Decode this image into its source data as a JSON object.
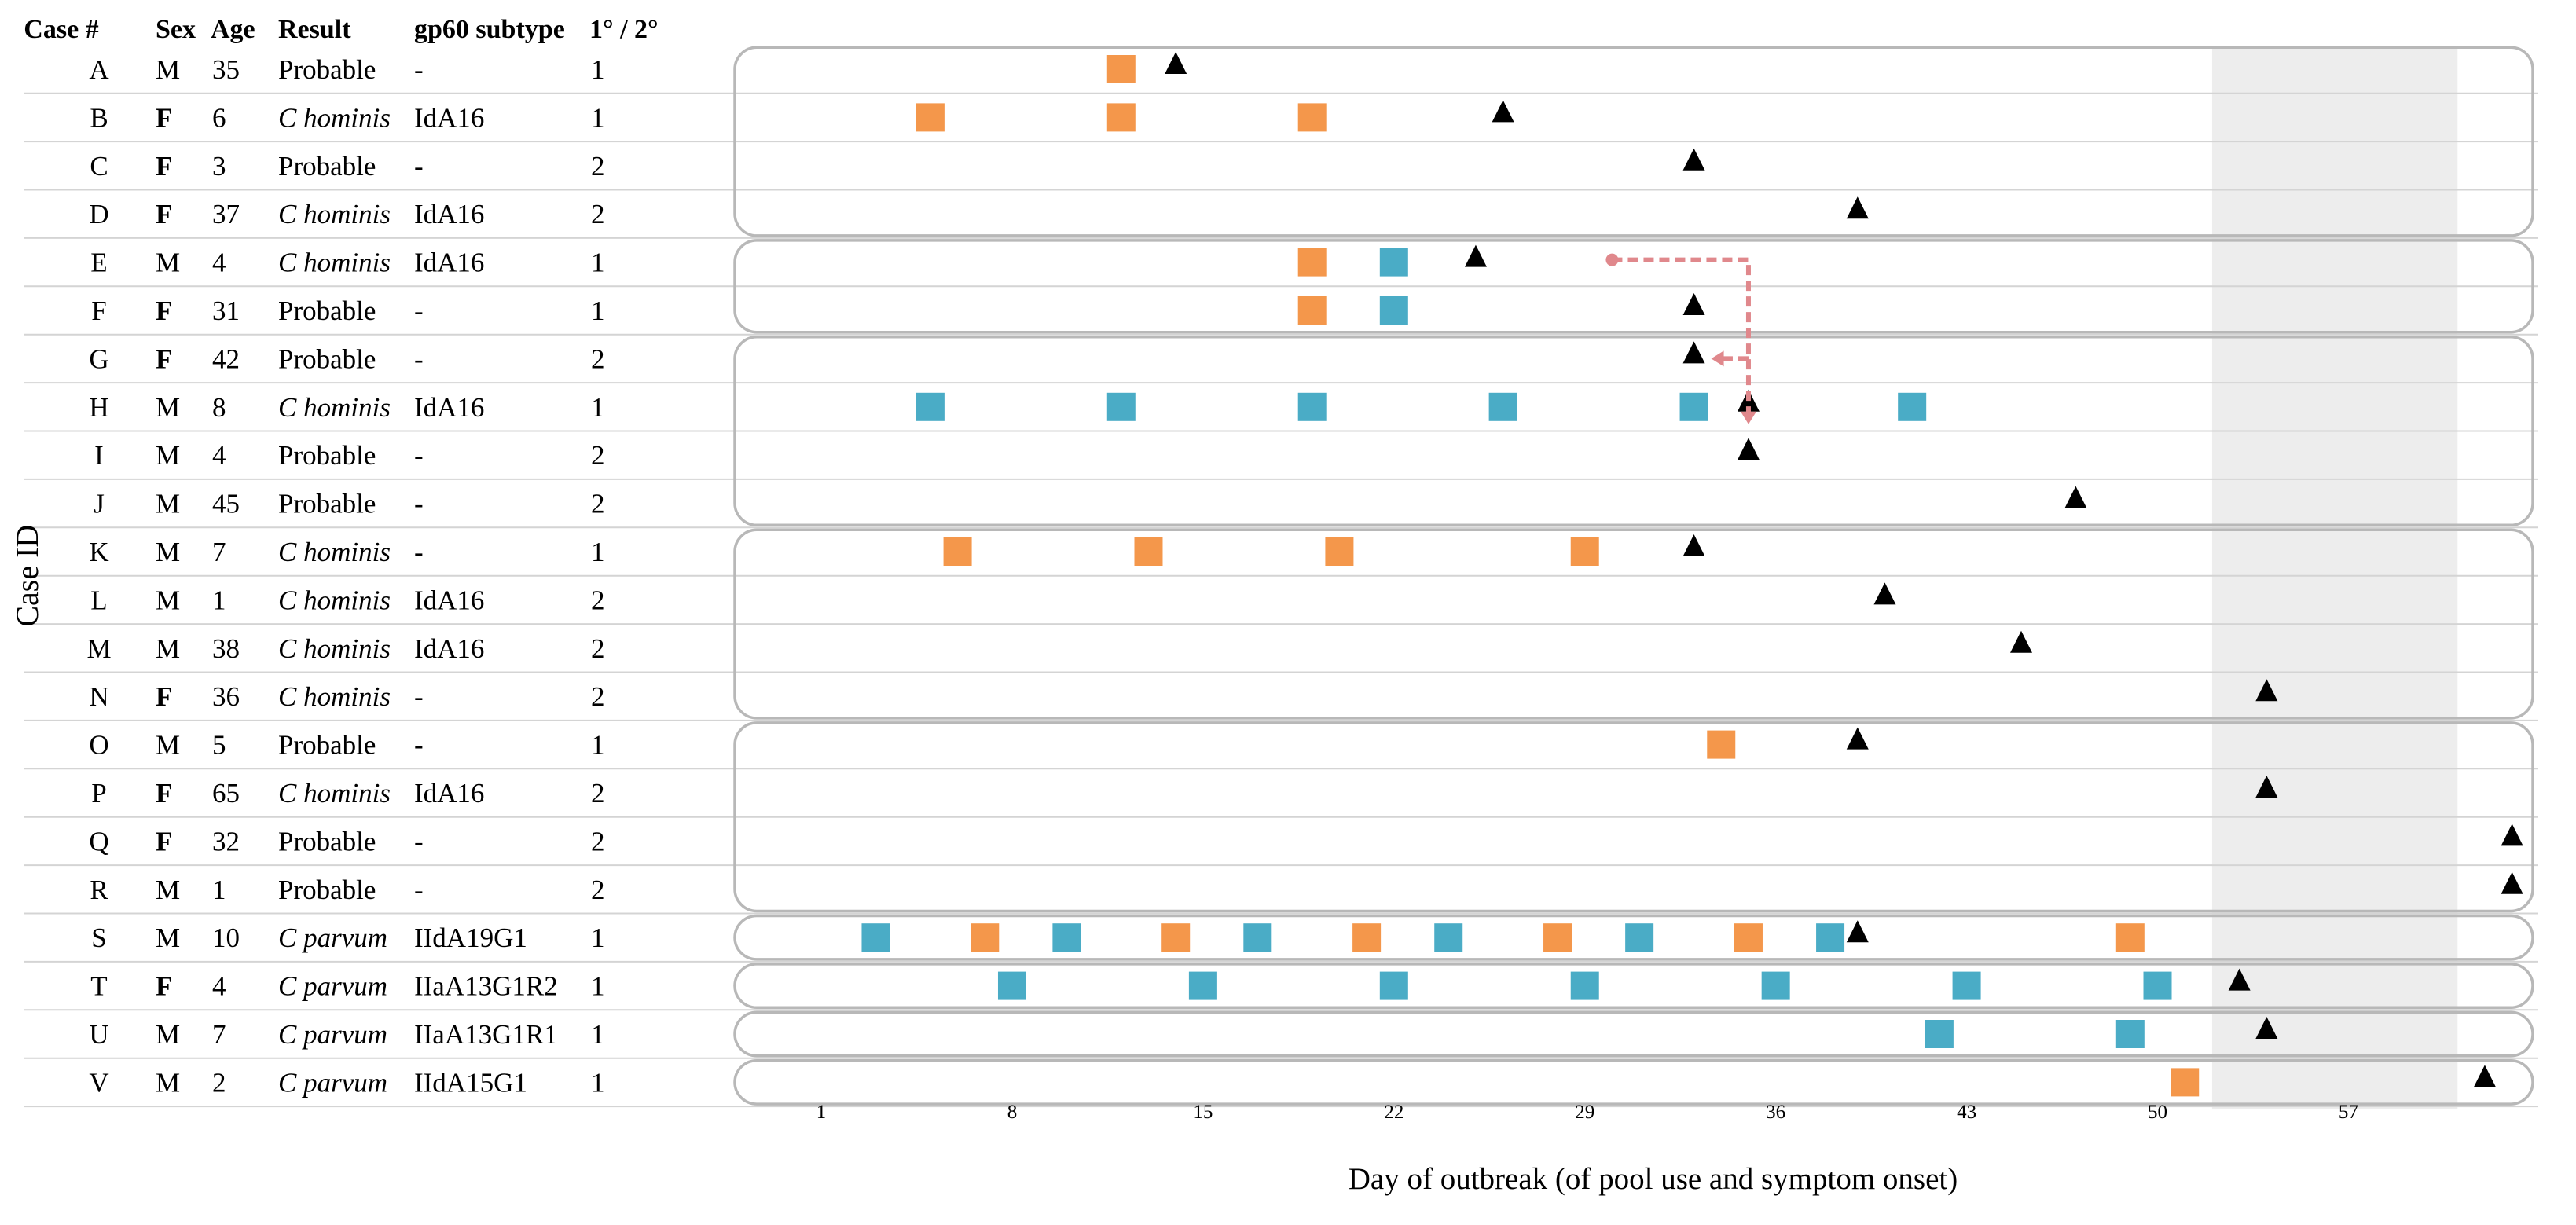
{
  "chart_data": {
    "type": "timeline",
    "xlabel": "Day of outbreak (of pool use and symptom onset)",
    "ylabel": "Case ID",
    "x_ticks": [
      "1",
      "8",
      "15",
      "22",
      "29",
      "36",
      "43",
      "50",
      "57"
    ],
    "xlim": [
      -0.5,
      63.5
    ],
    "shaded_range": [
      52,
      61
    ],
    "columns": [
      "Case #",
      "Sex",
      "Age",
      "Result",
      "gp60 subtype",
      "1° / 2°"
    ],
    "cases": [
      {
        "id": "A",
        "sex": "M",
        "age": "35",
        "result": "Probable",
        "species": "",
        "subtype": "-",
        "class": "1",
        "group": 0,
        "orange": [
          12
        ],
        "blue": [],
        "onset": 14
      },
      {
        "id": "B",
        "sex": "F",
        "age": "6",
        "result": "",
        "species": "C hominis",
        "subtype": "IdA16",
        "class": "1",
        "group": 0,
        "orange": [
          5,
          12,
          19
        ],
        "blue": [],
        "onset": 26
      },
      {
        "id": "C",
        "sex": "F",
        "age": "3",
        "result": "Probable",
        "species": "",
        "subtype": "-",
        "class": "2",
        "group": 0,
        "orange": [],
        "blue": [],
        "onset": 33
      },
      {
        "id": "D",
        "sex": "F",
        "age": "37",
        "result": "",
        "species": "C hominis",
        "subtype": "IdA16",
        "class": "2",
        "group": 0,
        "orange": [],
        "blue": [],
        "onset": 39
      },
      {
        "id": "E",
        "sex": "M",
        "age": "4",
        "result": "",
        "species": "C hominis",
        "subtype": "IdA16",
        "class": "1",
        "group": 1,
        "orange": [
          19
        ],
        "blue": [
          22
        ],
        "onset": 25
      },
      {
        "id": "F",
        "sex": "F",
        "age": "31",
        "result": "Probable",
        "species": "",
        "subtype": "-",
        "class": "1",
        "group": 1,
        "orange": [
          19
        ],
        "blue": [
          22
        ],
        "onset": 33
      },
      {
        "id": "G",
        "sex": "F",
        "age": "42",
        "result": "Probable",
        "species": "",
        "subtype": "-",
        "class": "2",
        "group": 2,
        "orange": [],
        "blue": [],
        "onset": 33
      },
      {
        "id": "H",
        "sex": "M",
        "age": "8",
        "result": "",
        "species": "C hominis",
        "subtype": "IdA16",
        "class": "1",
        "group": 2,
        "orange": [],
        "blue": [
          5,
          12,
          19,
          26,
          33,
          41
        ],
        "onset": 35
      },
      {
        "id": "I",
        "sex": "M",
        "age": "4",
        "result": "Probable",
        "species": "",
        "subtype": "-",
        "class": "2",
        "group": 2,
        "orange": [],
        "blue": [],
        "onset": 35
      },
      {
        "id": "J",
        "sex": "M",
        "age": "45",
        "result": "Probable",
        "species": "",
        "subtype": "-",
        "class": "2",
        "group": 2,
        "orange": [],
        "blue": [],
        "onset": 47
      },
      {
        "id": "K",
        "sex": "M",
        "age": "7",
        "result": "",
        "species": "C hominis",
        "subtype": "-",
        "class": "1",
        "group": 3,
        "orange": [
          6,
          13,
          20,
          29
        ],
        "blue": [],
        "onset": 33
      },
      {
        "id": "L",
        "sex": "M",
        "age": "1",
        "result": "",
        "species": "C hominis",
        "subtype": "IdA16",
        "class": "2",
        "group": 3,
        "orange": [],
        "blue": [],
        "onset": 40
      },
      {
        "id": "M",
        "sex": "M",
        "age": "38",
        "result": "",
        "species": "C hominis",
        "subtype": "IdA16",
        "class": "2",
        "group": 3,
        "orange": [],
        "blue": [],
        "onset": 45
      },
      {
        "id": "N",
        "sex": "F",
        "age": "36",
        "result": "",
        "species": "C hominis",
        "subtype": "-",
        "class": "2",
        "group": 3,
        "orange": [],
        "blue": [],
        "onset": 54
      },
      {
        "id": "O",
        "sex": "M",
        "age": "5",
        "result": "Probable",
        "species": "",
        "subtype": "-",
        "class": "1",
        "group": 4,
        "orange": [
          34
        ],
        "blue": [],
        "onset": 39
      },
      {
        "id": "P",
        "sex": "F",
        "age": "65",
        "result": "",
        "species": "C hominis",
        "subtype": "IdA16",
        "class": "2",
        "group": 4,
        "orange": [],
        "blue": [],
        "onset": 54
      },
      {
        "id": "Q",
        "sex": "F",
        "age": "32",
        "result": "Probable",
        "species": "",
        "subtype": "-",
        "class": "2",
        "group": 4,
        "orange": [],
        "blue": [],
        "onset": 63
      },
      {
        "id": "R",
        "sex": "M",
        "age": "1",
        "result": "Probable",
        "species": "",
        "subtype": "-",
        "class": "2",
        "group": 4,
        "orange": [],
        "blue": [],
        "onset": 63
      },
      {
        "id": "S",
        "sex": "M",
        "age": "10",
        "result": "",
        "species": "C parvum",
        "subtype": "IIdA19G1",
        "class": "1",
        "group": 5,
        "orange": [
          7,
          14,
          21,
          28,
          35,
          49
        ],
        "blue": [
          3,
          10,
          17,
          24,
          31,
          38
        ],
        "onset": 39
      },
      {
        "id": "T",
        "sex": "F",
        "age": "4",
        "result": "",
        "species": "C parvum",
        "subtype": "IIaA13G1R2",
        "class": "1",
        "group": 6,
        "orange": [],
        "blue": [
          8,
          15,
          22,
          29,
          36,
          43,
          50
        ],
        "onset": 53
      },
      {
        "id": "U",
        "sex": "M",
        "age": "7",
        "result": "",
        "species": "C parvum",
        "subtype": "IIaA13G1R1",
        "class": "1",
        "group": 7,
        "orange": [],
        "blue": [
          42,
          49
        ],
        "onset": 54
      },
      {
        "id": "V",
        "sex": "M",
        "age": "2",
        "result": "",
        "species": "C parvum",
        "subtype": "IIdA15G1",
        "class": "1",
        "group": 8,
        "orange": [
          51
        ],
        "blue": [],
        "onset": 62
      }
    ],
    "arrow": {
      "from_case": "E",
      "from_day": 30,
      "corner_day": 35,
      "to_cases": [
        "G",
        "H"
      ]
    },
    "colors": {
      "orange": "#f4974b",
      "blue": "#4aacc6",
      "onset": "#000000",
      "arrow": "#e0888c",
      "shade": "#ededed",
      "group_border": "#b8b8b8",
      "grid": "#d4d4d4"
    }
  }
}
